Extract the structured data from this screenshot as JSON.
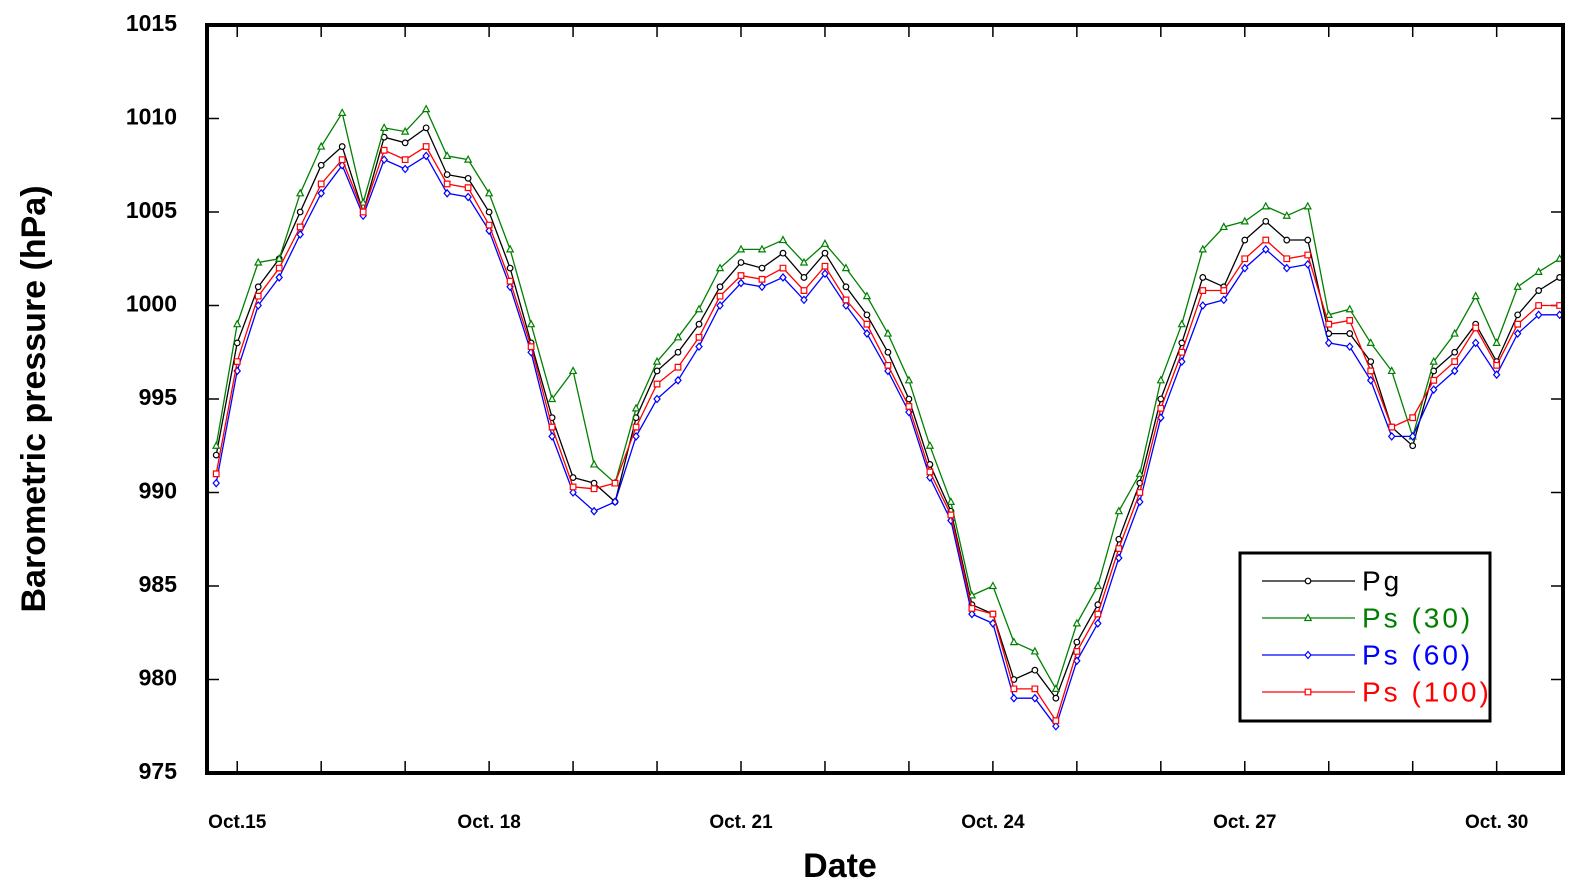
{
  "chart_data": {
    "type": "line",
    "x_label": "Date",
    "y_label": "Barometric pressure (hPa)",
    "x": [
      14.75,
      15,
      15.25,
      15.5,
      15.75,
      16,
      16.25,
      16.5,
      16.75,
      17,
      17.25,
      17.5,
      17.75,
      18,
      18.25,
      18.5,
      18.75,
      19,
      19.25,
      19.5,
      19.75,
      20,
      20.25,
      20.5,
      20.75,
      21,
      21.25,
      21.5,
      21.75,
      22,
      22.25,
      22.5,
      22.75,
      23,
      23.25,
      23.5,
      23.75,
      24,
      24.25,
      24.5,
      24.75,
      25,
      25.25,
      25.5,
      25.75,
      26,
      26.25,
      26.5,
      26.75,
      27,
      27.25,
      27.5,
      27.75,
      28,
      28.25,
      28.5,
      28.75,
      29,
      29.25,
      29.5,
      29.75,
      30,
      30.25,
      30.5,
      30.75
    ],
    "series": [
      {
        "name": "Pg",
        "color": "#000000",
        "marker": "circle",
        "values": [
          992,
          998,
          1001,
          1002.5,
          1005,
          1007.5,
          1008.5,
          1005,
          1009,
          1008.7,
          1009.5,
          1007,
          1006.8,
          1005,
          1002,
          998,
          994,
          990.8,
          990.5,
          989.5,
          994,
          996.5,
          997.5,
          999,
          1001,
          1002.3,
          1002,
          1002.8,
          1001.5,
          1002.8,
          1001,
          999.5,
          997.5,
          995,
          991.5,
          989,
          984,
          983.5,
          980,
          980.5,
          979,
          982,
          984,
          987.5,
          990.5,
          995,
          998,
          1001.5,
          1001,
          1003.5,
          1004.5,
          1003.5,
          1003.5,
          998.5,
          998.5,
          997,
          993.5,
          992.5,
          996.5,
          997.5,
          999,
          997,
          999.5,
          1000.8,
          1001.5
        ]
      },
      {
        "name": "Ps (30)",
        "color": "#008000",
        "marker": "triangle",
        "values": [
          992.5,
          999,
          1002.3,
          1002.5,
          1006,
          1008.5,
          1010.3,
          1005.5,
          1009.5,
          1009.3,
          1010.5,
          1008,
          1007.8,
          1006,
          1003,
          999,
          995,
          996.5,
          991.5,
          990.5,
          994.5,
          997,
          998.3,
          999.8,
          1002,
          1003,
          1003,
          1003.5,
          1002.3,
          1003.3,
          1002,
          1000.5,
          998.5,
          996,
          992.5,
          989.5,
          984.5,
          985,
          982,
          981.5,
          979.5,
          983,
          985,
          989,
          991,
          996,
          999,
          1003,
          1004.2,
          1004.5,
          1005.3,
          1004.8,
          1005.3,
          999.5,
          999.8,
          998,
          996.5,
          993,
          997,
          998.5,
          1000.5,
          998,
          1001,
          1001.8,
          1002.5
        ]
      },
      {
        "name": "Ps (60)",
        "color": "#0000ff",
        "marker": "diamond",
        "values": [
          990.5,
          996.5,
          1000,
          1001.5,
          1003.8,
          1006,
          1007.5,
          1004.8,
          1007.8,
          1007.3,
          1008,
          1006,
          1005.8,
          1004,
          1001,
          997.5,
          993,
          990,
          989,
          989.5,
          993,
          995,
          996,
          997.8,
          1000,
          1001.2,
          1001,
          1001.5,
          1000.3,
          1001.7,
          1000,
          998.5,
          996.5,
          994.3,
          990.8,
          988.5,
          983.5,
          983,
          979,
          979,
          977.5,
          981,
          983,
          986.5,
          989.5,
          994,
          997,
          1000,
          1000.3,
          1002,
          1003,
          1002,
          1002.2,
          998,
          997.8,
          996,
          993,
          993,
          995.5,
          996.5,
          998,
          996.3,
          998.5,
          999.5,
          999.5
        ]
      },
      {
        "name": "Ps (100)",
        "color": "#ff0000",
        "marker": "square",
        "values": [
          991,
          997,
          1000.5,
          1002,
          1004.2,
          1006.5,
          1007.8,
          1005,
          1008.3,
          1007.8,
          1008.5,
          1006.5,
          1006.3,
          1004.3,
          1001.3,
          997.8,
          993.5,
          990.3,
          990.2,
          990.5,
          993.5,
          995.8,
          996.7,
          998.3,
          1000.5,
          1001.6,
          1001.4,
          1002,
          1000.8,
          1002.1,
          1000.3,
          999,
          996.8,
          994.6,
          991.1,
          988.8,
          983.8,
          983.5,
          979.5,
          979.5,
          977.8,
          981.5,
          983.5,
          987,
          990,
          994.5,
          997.5,
          1000.8,
          1000.8,
          1002.5,
          1003.5,
          1002.5,
          1002.7,
          999,
          999.2,
          996.5,
          993.5,
          994,
          996,
          997,
          998.8,
          996.8,
          999,
          1000,
          1000
        ]
      }
    ],
    "xlim": [
      14.64,
      30.79
    ],
    "xticks": [
      {
        "value": 15,
        "label": "Oct.15"
      },
      {
        "value": 18,
        "label": "Oct. 18"
      },
      {
        "value": 21,
        "label": "Oct. 21"
      },
      {
        "value": 24,
        "label": "Oct. 24"
      },
      {
        "value": 27,
        "label": "Oct. 27"
      },
      {
        "value": 30,
        "label": "Oct. 30"
      }
    ],
    "xminorticks": [
      16,
      17,
      19,
      20,
      22,
      23,
      25,
      26,
      28,
      29
    ],
    "ylim": [
      975,
      1015
    ],
    "yticks": [
      975,
      980,
      985,
      990,
      995,
      1000,
      1005,
      1010,
      1015
    ],
    "grid": false,
    "legend": "lower right"
  }
}
